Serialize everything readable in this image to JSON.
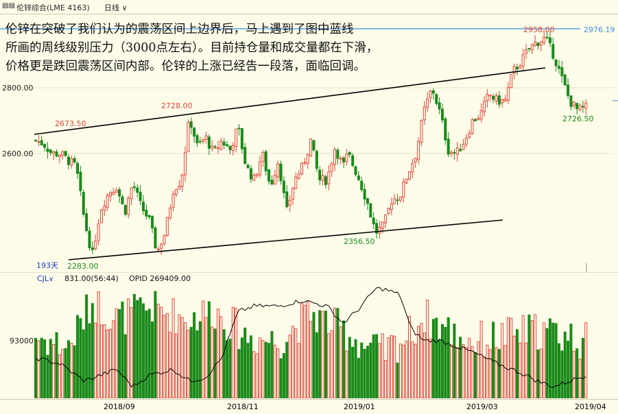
{
  "toolbar": {
    "title": "伦锌综合(LME 4163)",
    "period": "日线",
    "icon": "toggle-icon"
  },
  "annotation": {
    "lines": [
      "      伦锌在突破了我们认为的震荡区间上边界后，马上遇到了图中蓝线",
      "所画的周线级别压力（3000点左右）。目前持仓量和成交量都在下滑，",
      "价格更是跌回震荡区间内部。伦锌的上涨已经告一段落，面临回调。"
    ]
  },
  "colors": {
    "up": "#e5453a",
    "down": "#1a8a1a",
    "trend": "#000000",
    "resistance": "#3a8ee6",
    "bg": "#fdfce9"
  },
  "price_axis": {
    "ticks": [
      "2800.00",
      "2600.00"
    ]
  },
  "resistance_label": "2976.19",
  "labels": {
    "p2673": "2673.50",
    "p2728": "2728.00",
    "p2958": "2958.00",
    "p2283": "2283.00",
    "p2356": "2356.50",
    "p2726": "2726.50",
    "days": "193天"
  },
  "volume_panel": {
    "name": "CJL",
    "value": "831.00(56:44)",
    "opid": "OPID 269409.00",
    "tick": "93000"
  },
  "x_axis": {
    "labels": [
      "2018/09",
      "2018/11",
      "2019/01",
      "2019/03",
      "2019/04"
    ]
  },
  "chart_data": {
    "type": "candlestick",
    "series": "daily",
    "count": 193,
    "anchors": [
      [
        0,
        2640
      ],
      [
        5,
        2630
      ],
      [
        10,
        2600
      ],
      [
        15,
        2600
      ],
      [
        20,
        2580
      ],
      [
        25,
        2560
      ],
      [
        30,
        2400
      ],
      [
        35,
        2290
      ],
      [
        40,
        2430
      ],
      [
        45,
        2480
      ],
      [
        50,
        2500
      ],
      [
        55,
        2420
      ],
      [
        60,
        2510
      ],
      [
        65,
        2440
      ],
      [
        70,
        2400
      ],
      [
        75,
        2300
      ],
      [
        80,
        2360
      ],
      [
        85,
        2490
      ],
      [
        90,
        2520
      ],
      [
        95,
        2710
      ],
      [
        100,
        2620
      ],
      [
        105,
        2650
      ],
      [
        110,
        2600
      ],
      [
        115,
        2640
      ],
      [
        120,
        2610
      ],
      [
        125,
        2680
      ],
      [
        130,
        2560
      ],
      [
        135,
        2520
      ],
      [
        140,
        2600
      ],
      [
        145,
        2500
      ],
      [
        150,
        2580
      ],
      [
        155,
        2420
      ],
      [
        160,
        2520
      ],
      [
        165,
        2560
      ],
      [
        170,
        2640
      ],
      [
        175,
        2520
      ],
      [
        180,
        2520
      ],
      [
        185,
        2620
      ],
      [
        190,
        2560
      ],
      [
        193,
        2600
      ],
      [
        200,
        2520
      ],
      [
        205,
        2450
      ],
      [
        210,
        2360
      ],
      [
        215,
        2380
      ],
      [
        220,
        2460
      ],
      [
        225,
        2470
      ],
      [
        230,
        2540
      ],
      [
        235,
        2600
      ],
      [
        240,
        2730
      ],
      [
        245,
        2800
      ],
      [
        250,
        2720
      ],
      [
        255,
        2610
      ],
      [
        260,
        2600
      ],
      [
        265,
        2640
      ],
      [
        270,
        2700
      ],
      [
        275,
        2720
      ],
      [
        280,
        2780
      ],
      [
        285,
        2760
      ],
      [
        290,
        2760
      ],
      [
        295,
        2850
      ],
      [
        300,
        2880
      ],
      [
        305,
        2920
      ],
      [
        310,
        2940
      ],
      [
        315,
        2950
      ],
      [
        320,
        2900
      ],
      [
        325,
        2830
      ],
      [
        330,
        2760
      ],
      [
        335,
        2730
      ],
      [
        340,
        2740
      ]
    ],
    "volume": {
      "anchors": [
        [
          0,
          0.55
        ],
        [
          20,
          0.45
        ],
        [
          35,
          0.85
        ],
        [
          50,
          0.7
        ],
        [
          70,
          0.8
        ],
        [
          95,
          0.7
        ],
        [
          110,
          0.78
        ],
        [
          130,
          0.55
        ],
        [
          150,
          0.5
        ],
        [
          170,
          0.75
        ],
        [
          190,
          0.6
        ],
        [
          205,
          0.45
        ],
        [
          215,
          0.4
        ],
        [
          230,
          0.55
        ],
        [
          240,
          0.72
        ],
        [
          255,
          0.6
        ],
        [
          270,
          0.5
        ],
        [
          290,
          0.55
        ],
        [
          310,
          0.6
        ],
        [
          330,
          0.55
        ],
        [
          340,
          0.5
        ]
      ]
    },
    "open_interest": {
      "anchors": [
        [
          0,
          0.35
        ],
        [
          15,
          0.3
        ],
        [
          30,
          0.15
        ],
        [
          40,
          0.2
        ],
        [
          50,
          0.25
        ],
        [
          60,
          0.1
        ],
        [
          70,
          0.2
        ],
        [
          85,
          0.25
        ],
        [
          95,
          0.15
        ],
        [
          105,
          0.18
        ],
        [
          115,
          0.35
        ],
        [
          125,
          0.75
        ],
        [
          135,
          0.8
        ],
        [
          150,
          0.8
        ],
        [
          165,
          0.85
        ],
        [
          180,
          0.8
        ],
        [
          190,
          0.65
        ],
        [
          200,
          0.78
        ],
        [
          210,
          0.95
        ],
        [
          215,
          0.95
        ],
        [
          225,
          0.9
        ],
        [
          232,
          0.6
        ],
        [
          240,
          0.5
        ],
        [
          250,
          0.5
        ],
        [
          260,
          0.45
        ],
        [
          270,
          0.4
        ],
        [
          285,
          0.3
        ],
        [
          300,
          0.22
        ],
        [
          310,
          0.15
        ],
        [
          320,
          0.1
        ],
        [
          330,
          0.15
        ],
        [
          340,
          0.2
        ]
      ]
    }
  }
}
